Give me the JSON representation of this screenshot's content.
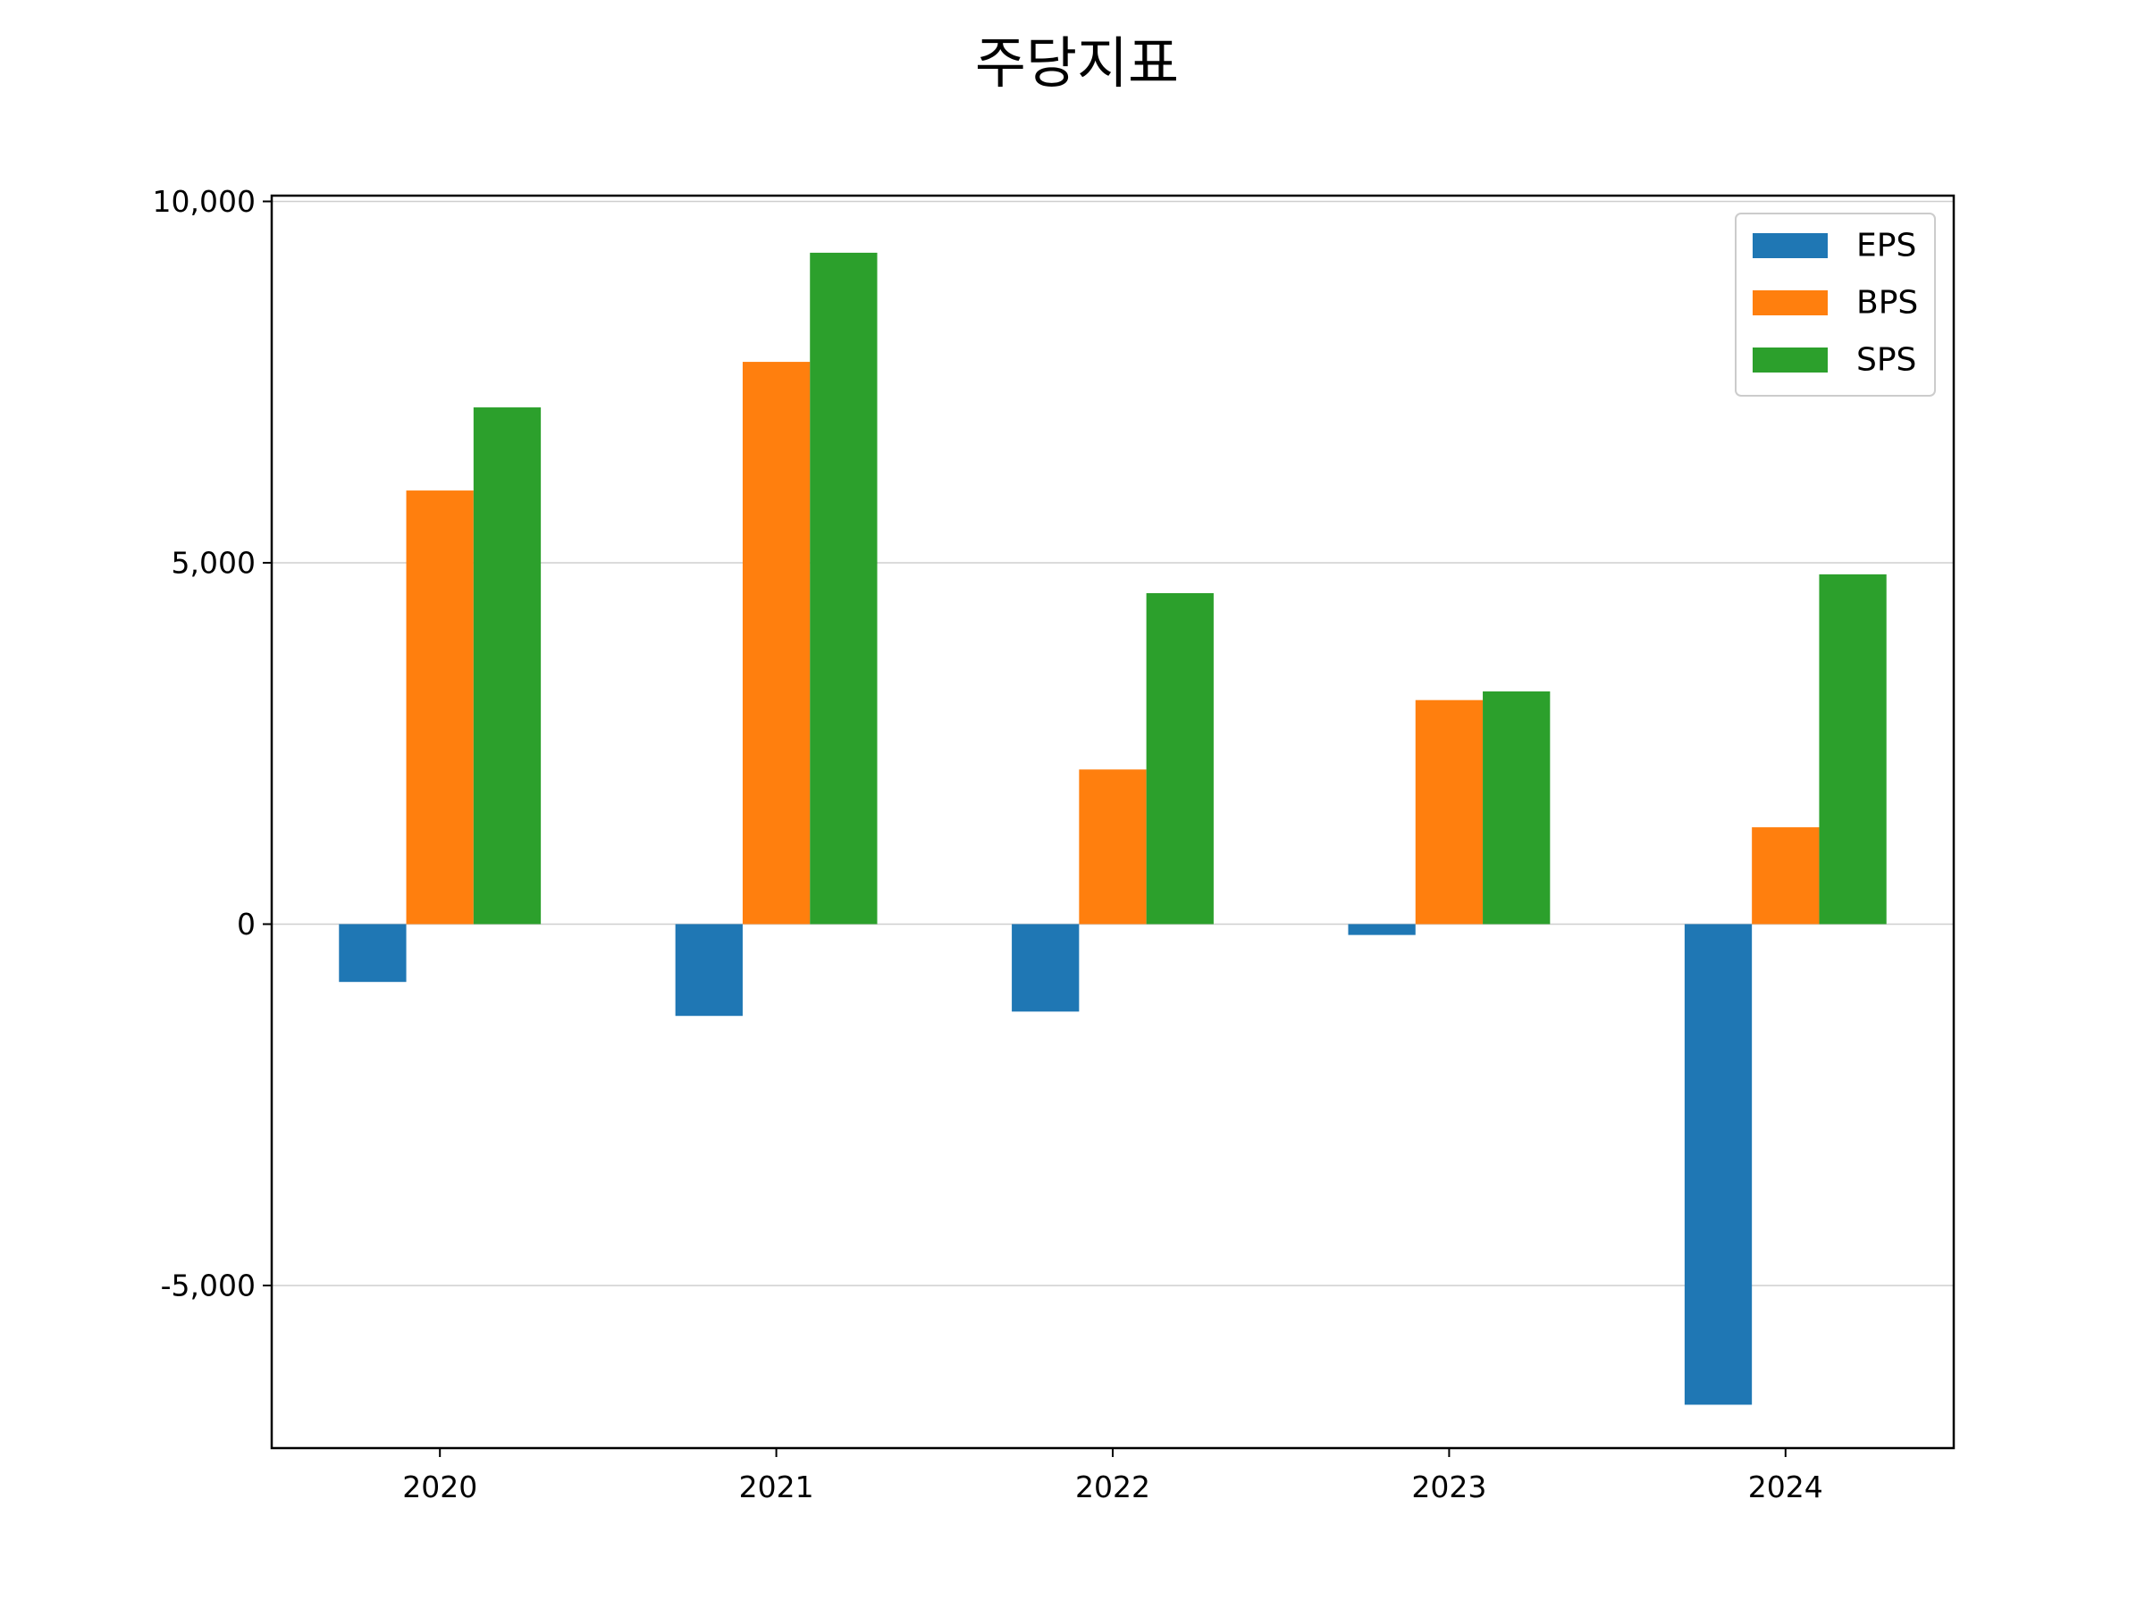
{
  "chart_data": {
    "type": "bar",
    "title": "주당지표",
    "xlabel": "",
    "ylabel": "",
    "categories": [
      "2020",
      "2021",
      "2022",
      "2023",
      "2024"
    ],
    "series": [
      {
        "name": "EPS",
        "color": "#1f77b4",
        "values": [
          -800,
          -1270,
          -1210,
          -150,
          -6650
        ]
      },
      {
        "name": "BPS",
        "color": "#ff7f0e",
        "values": [
          6000,
          7780,
          2140,
          3100,
          1340
        ]
      },
      {
        "name": "SPS",
        "color": "#2ca02c",
        "values": [
          7150,
          9290,
          4580,
          3220,
          4840
        ]
      }
    ],
    "ylim": [
      -7250,
      10080
    ],
    "yticks": [
      {
        "value": -5000,
        "label": "-5,000"
      },
      {
        "value": 0,
        "label": "0"
      },
      {
        "value": 5000,
        "label": "5,000"
      },
      {
        "value": 10000,
        "label": "10,000"
      }
    ],
    "grid": "horizontal",
    "legend_position": "top-right"
  }
}
